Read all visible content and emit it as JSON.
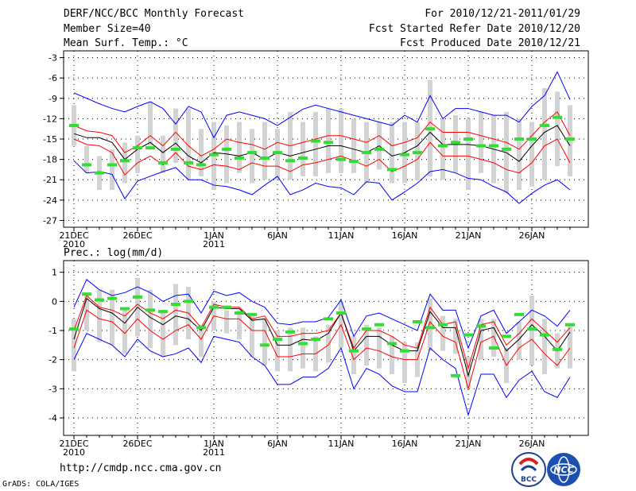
{
  "header": {
    "title": "DERF/NCC/BCC Monthly Forecast",
    "member_size": "Member Size=40",
    "variable": "Mean Surf. Temp.: °C",
    "forecast_period": "For 2010/12/21-2011/01/29",
    "started_refer": "Fcst Started Refer Date 2010/12/20",
    "produced": "Fcst Produced Date 2010/12/21"
  },
  "footer": {
    "url": "http://cmdp.ncc.cma.gov.cn",
    "grads": "GrADS: COLA/IGES",
    "logo_bcc": "BCC",
    "logo_ncc": "NCC"
  },
  "colors": {
    "ensemble_max_min": "#0000ff",
    "ensemble_spread": "#ff0000",
    "ensemble_mean": "#000000",
    "range_bar": "#d3d3d3",
    "observation": "#33dd33"
  },
  "chart_data": [
    {
      "type": "line",
      "title": "Mean Surf. Temp.: °C",
      "ylim": [
        -28,
        -2
      ],
      "yticks": [
        -3,
        -6,
        -9,
        -12,
        -15,
        -18,
        -21,
        -24,
        -27
      ],
      "xticks": [
        {
          "day": 0,
          "label": "21DEC",
          "sub": "2010"
        },
        {
          "day": 5,
          "label": "26DEC",
          "sub": ""
        },
        {
          "day": 11,
          "label": "1JAN",
          "sub": "2011"
        },
        {
          "day": 16,
          "label": "6JAN",
          "sub": ""
        },
        {
          "day": 21,
          "label": "11JAN",
          "sub": ""
        },
        {
          "day": 26,
          "label": "16JAN",
          "sub": ""
        },
        {
          "day": 31,
          "label": "21JAN",
          "sub": ""
        },
        {
          "day": 36,
          "label": "26JAN",
          "sub": ""
        }
      ],
      "days": 40,
      "series": [
        {
          "name": "max",
          "values": [
            -8.2,
            -9.0,
            -9.8,
            -10.5,
            -11.0,
            -10.2,
            -9.5,
            -10.5,
            -12.8,
            -10.2,
            -11.0,
            -14.8,
            -11.5,
            -11.0,
            -11.5,
            -12.0,
            -13.0,
            -11.8,
            -10.6,
            -10.0,
            -10.5,
            -11.0,
            -11.5,
            -12.0,
            -12.5,
            -13.0,
            -11.5,
            -12.5,
            -8.6,
            -12.0,
            -10.5,
            -10.5,
            -11.0,
            -11.5,
            -11.5,
            -12.5,
            -10.2,
            -8.6,
            -5.1,
            -9.2
          ]
        },
        {
          "name": "upper",
          "values": [
            -13.0,
            -13.8,
            -14.0,
            -14.5,
            -17.0,
            -16.0,
            -14.5,
            -16.0,
            -14.0,
            -16.0,
            -17.5,
            -16.5,
            -15.0,
            -15.5,
            -15.8,
            -16.5,
            -15.5,
            -16.0,
            -15.5,
            -15.0,
            -14.5,
            -14.5,
            -15.0,
            -15.5,
            -14.5,
            -16.0,
            -15.5,
            -14.8,
            -12.5,
            -14.0,
            -14.0,
            -14.0,
            -14.5,
            -15.0,
            -15.5,
            -16.5,
            -14.5,
            -12.5,
            -11.0,
            -14.5
          ]
        },
        {
          "name": "mean",
          "values": [
            -14.2,
            -14.8,
            -14.8,
            -15.5,
            -18.0,
            -16.5,
            -15.5,
            -17.0,
            -15.6,
            -17.5,
            -18.5,
            -17.0,
            -17.2,
            -17.5,
            -17.0,
            -18.0,
            -17.0,
            -17.5,
            -17.0,
            -16.5,
            -16.0,
            -16.0,
            -16.5,
            -17.0,
            -16.0,
            -17.5,
            -17.0,
            -16.0,
            -14.0,
            -15.8,
            -15.8,
            -15.8,
            -16.0,
            -16.5,
            -17.0,
            -18.3,
            -16.0,
            -14.0,
            -13.0,
            -16.0
          ]
        },
        {
          "name": "lower",
          "values": [
            -15.0,
            -15.8,
            -16.0,
            -17.0,
            -20.3,
            -18.5,
            -17.5,
            -18.8,
            -17.0,
            -19.0,
            -19.5,
            -18.8,
            -19.0,
            -19.5,
            -18.5,
            -19.0,
            -19.0,
            -19.8,
            -18.8,
            -18.5,
            -18.0,
            -17.5,
            -18.2,
            -19.0,
            -18.0,
            -19.8,
            -19.0,
            -18.0,
            -15.5,
            -17.5,
            -17.5,
            -17.5,
            -18.0,
            -18.5,
            -19.5,
            -20.0,
            -18.5,
            -16.0,
            -15.0,
            -18.5
          ]
        },
        {
          "name": "min",
          "values": [
            -18.2,
            -20.0,
            -19.8,
            -20.2,
            -23.8,
            -21.2,
            -20.5,
            -19.8,
            -19.2,
            -21.0,
            -21.0,
            -21.8,
            -22.0,
            -22.5,
            -23.2,
            -21.8,
            -20.5,
            -23.2,
            -22.5,
            -21.5,
            -22.0,
            -22.2,
            -23.2,
            -21.3,
            -21.5,
            -24.0,
            -22.8,
            -21.5,
            -19.8,
            -19.5,
            -20.0,
            -20.8,
            -21.0,
            -22.0,
            -22.8,
            -24.5,
            -23.0,
            -21.8,
            -21.0,
            -22.5
          ]
        },
        {
          "name": "bar_top",
          "values": [
            -10.0,
            -16.0,
            -17.5,
            -16.5,
            -15.5,
            -14.5,
            -9.5,
            -14.5,
            -10.5,
            -10.5,
            -13.5,
            -12.5,
            -13.0,
            -12.5,
            -13.5,
            -12.5,
            -13.5,
            -11.0,
            -12.5,
            -11.0,
            -10.5,
            -10.5,
            -12.0,
            -12.5,
            -12.5,
            -12.5,
            -12.5,
            -12.5,
            -6.3,
            -12.0,
            -11.5,
            -12.0,
            -11.0,
            -11.5,
            -11.0,
            -12.0,
            -12.5,
            -7.5,
            -8.0,
            -10.0
          ]
        },
        {
          "name": "bar_bottom",
          "values": [
            -16.0,
            -20.0,
            -22.5,
            -22.5,
            -21.5,
            -20.0,
            -16.0,
            -20.0,
            -18.5,
            -21.0,
            -20.5,
            -22.5,
            -21.5,
            -20.0,
            -21.5,
            -21.0,
            -21.0,
            -21.0,
            -20.5,
            -20.5,
            -20.0,
            -20.0,
            -20.0,
            -21.5,
            -19.5,
            -21.5,
            -21.5,
            -21.0,
            -20.5,
            -21.0,
            -20.0,
            -22.5,
            -20.0,
            -21.5,
            -23.0,
            -22.5,
            -22.0,
            -21.0,
            -19.0,
            -20.5
          ]
        },
        {
          "name": "obs",
          "values": [
            -13.0,
            -18.8,
            -20.0,
            -18.8,
            -18.2,
            -16.3,
            -16.3,
            -18.5,
            -16.5,
            -18.5,
            -18.8,
            -17.3,
            -16.5,
            -17.8,
            -17.0,
            -17.8,
            -17.0,
            -18.2,
            -17.8,
            -15.3,
            -15.5,
            -18.0,
            -18.3,
            -17.0,
            -16.5,
            -19.5,
            -17.3,
            -17.0,
            -13.5,
            -16.0,
            -15.5,
            -15.0,
            -16.0,
            -16.0,
            -16.5,
            -15.0,
            -15.0,
            -13.0,
            -11.8,
            -15.0
          ]
        }
      ]
    },
    {
      "type": "line",
      "title": "Prec.: log(mm/d)",
      "ylim": [
        -4.6,
        1.4
      ],
      "yticks": [
        1,
        0,
        -1,
        -2,
        -3,
        -4
      ],
      "xticks": [
        {
          "day": 0,
          "label": "21DEC",
          "sub": "2010"
        },
        {
          "day": 5,
          "label": "26DEC",
          "sub": ""
        },
        {
          "day": 11,
          "label": "1JAN",
          "sub": "2011"
        },
        {
          "day": 16,
          "label": "6JAN",
          "sub": ""
        },
        {
          "day": 21,
          "label": "11JAN",
          "sub": ""
        },
        {
          "day": 26,
          "label": "16JAN",
          "sub": ""
        },
        {
          "day": 31,
          "label": "21JAN",
          "sub": ""
        },
        {
          "day": 36,
          "label": "26JAN",
          "sub": ""
        }
      ],
      "days": 40,
      "series": [
        {
          "name": "max",
          "values": [
            -0.2,
            0.75,
            0.4,
            0.2,
            0.3,
            0.5,
            0.3,
            0.0,
            0.2,
            0.25,
            -0.4,
            0.35,
            0.2,
            0.3,
            0.0,
            -0.2,
            -0.75,
            -0.8,
            -0.7,
            -0.7,
            -0.55,
            0.05,
            -1.2,
            -0.5,
            -0.4,
            -0.6,
            -0.8,
            -1.0,
            0.25,
            -0.3,
            -0.3,
            -1.6,
            -0.5,
            -0.3,
            -1.1,
            -0.7,
            -0.3,
            -0.5,
            -0.85,
            -0.3
          ]
        },
        {
          "name": "upper",
          "values": [
            -1.0,
            0.2,
            -0.2,
            -0.3,
            -0.5,
            -0.1,
            -0.4,
            -0.6,
            -0.3,
            -0.4,
            -0.9,
            -0.1,
            -0.2,
            -0.2,
            -0.6,
            -0.5,
            -1.2,
            -1.2,
            -1.1,
            -1.1,
            -1.0,
            -0.4,
            -1.6,
            -1.0,
            -1.0,
            -1.2,
            -1.5,
            -1.6,
            -0.2,
            -0.8,
            -0.7,
            -2.3,
            -0.8,
            -0.7,
            -1.5,
            -1.1,
            -0.6,
            -1.0,
            -1.4,
            -0.9
          ]
        },
        {
          "name": "mean",
          "values": [
            -1.3,
            0.1,
            -0.25,
            -0.4,
            -0.75,
            -0.2,
            -0.55,
            -0.8,
            -0.5,
            -0.6,
            -1.0,
            -0.2,
            -0.25,
            -0.25,
            -0.65,
            -0.6,
            -1.5,
            -1.5,
            -1.3,
            -1.35,
            -1.1,
            -0.4,
            -1.7,
            -1.2,
            -1.2,
            -1.5,
            -1.7,
            -1.7,
            -0.35,
            -0.9,
            -0.9,
            -2.55,
            -1.0,
            -0.9,
            -1.7,
            -1.3,
            -0.8,
            -1.2,
            -1.7,
            -1.05
          ]
        },
        {
          "name": "lower",
          "values": [
            -1.6,
            -0.3,
            -0.6,
            -0.7,
            -1.1,
            -0.6,
            -1.0,
            -1.3,
            -1.0,
            -0.8,
            -1.3,
            -0.5,
            -0.6,
            -0.6,
            -1.0,
            -1.0,
            -1.9,
            -1.9,
            -1.8,
            -1.8,
            -1.5,
            -0.8,
            -2.0,
            -1.6,
            -1.7,
            -1.9,
            -2.0,
            -2.0,
            -0.7,
            -1.2,
            -1.4,
            -3.0,
            -1.4,
            -1.2,
            -2.2,
            -1.6,
            -1.3,
            -1.8,
            -2.2,
            -1.6
          ]
        },
        {
          "name": "min",
          "values": [
            -2.0,
            -1.1,
            -1.3,
            -1.5,
            -1.9,
            -1.3,
            -1.7,
            -1.9,
            -1.8,
            -1.6,
            -2.1,
            -1.2,
            -1.3,
            -1.4,
            -1.9,
            -2.2,
            -2.85,
            -2.85,
            -2.6,
            -2.6,
            -2.3,
            -1.6,
            -3.0,
            -2.3,
            -2.5,
            -2.9,
            -3.1,
            -3.1,
            -1.6,
            -2.0,
            -2.3,
            -3.9,
            -2.5,
            -2.5,
            -3.3,
            -2.7,
            -2.4,
            -3.1,
            -3.3,
            -2.6
          ]
        },
        {
          "name": "bar_top",
          "values": [
            -0.6,
            0.3,
            0.4,
            0.4,
            -0.2,
            0.8,
            0.4,
            -0.3,
            0.6,
            0.5,
            -0.8,
            0.0,
            -0.3,
            -0.3,
            -0.4,
            -0.6,
            -1.0,
            -0.9,
            -0.9,
            -1.2,
            -0.8,
            0.0,
            -1.2,
            -0.8,
            -0.9,
            -1.2,
            -1.4,
            -1.4,
            0.1,
            -0.5,
            -0.6,
            -1.9,
            -0.6,
            -0.6,
            -1.6,
            -0.7,
            0.2,
            -0.6,
            -1.1,
            -0.8
          ]
        },
        {
          "name": "bar_bottom",
          "values": [
            -2.4,
            -1.0,
            -1.4,
            -1.5,
            -1.8,
            -1.2,
            -1.6,
            -1.9,
            -1.5,
            -1.3,
            -1.9,
            -1.0,
            -1.1,
            -1.3,
            -1.9,
            -2.2,
            -2.4,
            -2.4,
            -2.3,
            -2.4,
            -2.1,
            -1.6,
            -2.5,
            -2.2,
            -2.3,
            -2.5,
            -2.8,
            -2.6,
            -1.7,
            -1.7,
            -1.8,
            -3.0,
            -2.0,
            -1.9,
            -2.8,
            -2.0,
            -2.2,
            -2.5,
            -2.3,
            -2.3
          ]
        },
        {
          "name": "obs",
          "values": [
            -0.95,
            0.25,
            0.05,
            0.1,
            -0.25,
            0.15,
            -0.3,
            -0.35,
            -0.1,
            0.0,
            -0.9,
            -0.2,
            -0.2,
            -0.4,
            -0.45,
            -1.5,
            -1.3,
            -1.05,
            -1.45,
            -1.3,
            -0.6,
            -0.4,
            -1.7,
            -0.95,
            -0.8,
            -1.45,
            -1.7,
            -0.7,
            -0.9,
            -0.8,
            -2.55,
            -1.15,
            -0.85,
            -1.6,
            -1.2,
            -0.45,
            -0.95,
            -1.15,
            -1.65,
            -0.8
          ]
        }
      ]
    }
  ]
}
